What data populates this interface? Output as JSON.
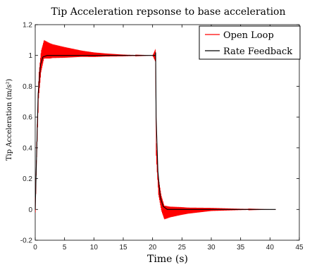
{
  "chart_data": {
    "type": "line",
    "title": "Tip Acceleration repsonse to base acceleration",
    "xlabel": "Time (s)",
    "ylabel": "Tip Acceleration (m/s²)",
    "xlim": [
      0,
      45
    ],
    "ylim": [
      -0.2,
      1.2
    ],
    "xticks": [
      "0",
      "5",
      "10",
      "15",
      "20",
      "25",
      "30",
      "35",
      "40",
      "45"
    ],
    "yticks": [
      "-0.2",
      "0",
      "0.2",
      "0.4",
      "0.6",
      "0.8",
      "1",
      "1.2"
    ],
    "grid": false,
    "legend_position": "top-right",
    "colors": {
      "open_loop": "#ff0000",
      "rate_feedback": "#000000"
    },
    "series": [
      {
        "name": "Open Loop",
        "color": "#ff0000",
        "description_points": [
          [
            0,
            0
          ],
          [
            0.3,
            0.45
          ],
          [
            0.6,
            0.8
          ],
          [
            1.0,
            0.96
          ],
          [
            1.5,
            1.04
          ],
          [
            2.5,
            1.03
          ],
          [
            5,
            1.02
          ],
          [
            10,
            1.005
          ],
          [
            15,
            1.0
          ],
          [
            20.5,
            1.0
          ],
          [
            20.6,
            0.4
          ],
          [
            21.0,
            0.15
          ],
          [
            21.5,
            0.04
          ],
          [
            22,
            -0.02
          ],
          [
            25,
            -0.01
          ],
          [
            30,
            0.0
          ],
          [
            41,
            0.0
          ]
        ],
        "oscillation_amplitude_points": [
          [
            0.5,
            0.08
          ],
          [
            1.5,
            0.06
          ],
          [
            3,
            0.045
          ],
          [
            5,
            0.035
          ],
          [
            8,
            0.02
          ],
          [
            12,
            0.01
          ],
          [
            16,
            0.004
          ],
          [
            20,
            0.0
          ],
          [
            20.7,
            0.06
          ],
          [
            21.5,
            0.05
          ],
          [
            23,
            0.035
          ],
          [
            26,
            0.02
          ],
          [
            30,
            0.01
          ],
          [
            35,
            0.004
          ],
          [
            40,
            0.0
          ]
        ]
      },
      {
        "name": "Rate Feedback",
        "color": "#000000",
        "description_points": [
          [
            0,
            0
          ],
          [
            0.2,
            0.3
          ],
          [
            0.5,
            0.75
          ],
          [
            0.9,
            0.94
          ],
          [
            1.3,
            0.99
          ],
          [
            2,
            1.0
          ],
          [
            20.5,
            1.0
          ],
          [
            20.52,
            1.02
          ],
          [
            20.6,
            0.6
          ],
          [
            20.9,
            0.25
          ],
          [
            21.3,
            0.08
          ],
          [
            21.8,
            0.02
          ],
          [
            22.5,
            0.0
          ],
          [
            41,
            0.0
          ]
        ]
      }
    ]
  }
}
